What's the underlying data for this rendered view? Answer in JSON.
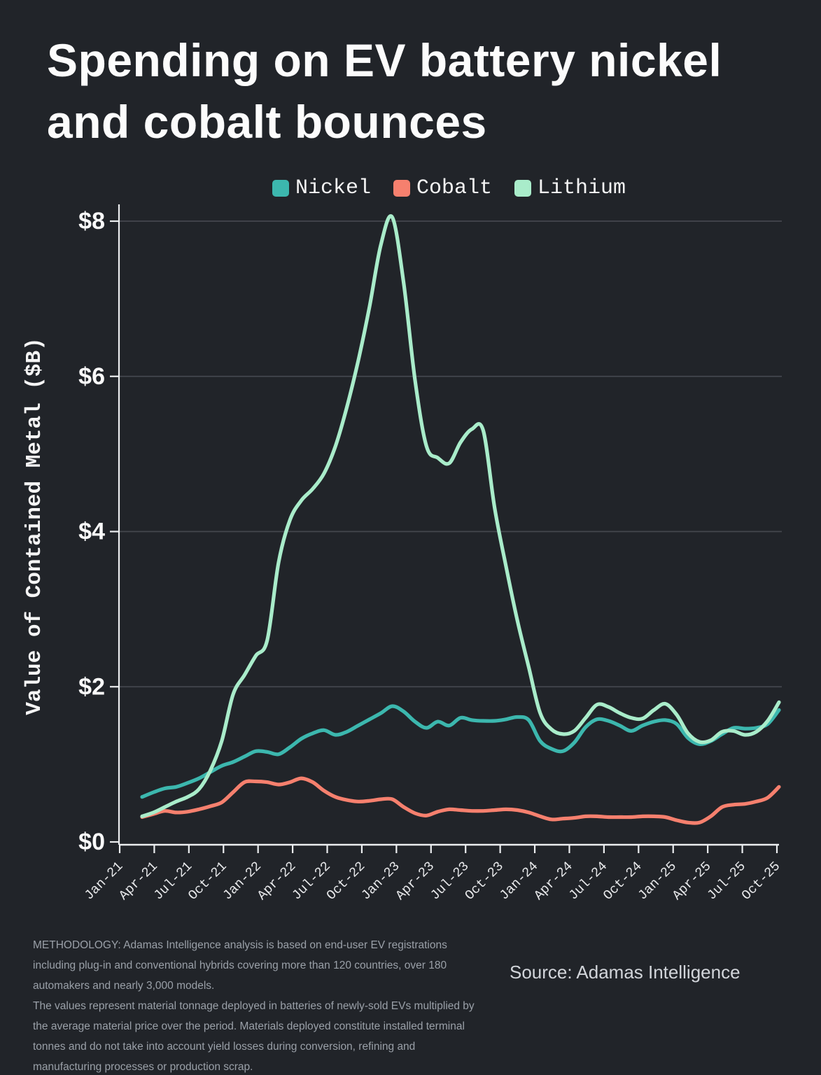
{
  "title": {
    "line1": "Spending on EV battery nickel",
    "line2": "and cobalt bounces"
  },
  "legend": [
    {
      "label": "Nickel",
      "color": "#3cb7ae"
    },
    {
      "label": "Cobalt",
      "color": "#f6806e"
    },
    {
      "label": "Lithium",
      "color": "#a9ecca"
    }
  ],
  "chart_data": {
    "type": "line",
    "title": "Spending on EV battery nickel and cobalt bounces",
    "ylabel": "Value of Contained Metal ($B)",
    "xlabel": "",
    "ylim": [
      0,
      8.4
    ],
    "y_tick_values": [
      0,
      2,
      4,
      6,
      8
    ],
    "y_tick_labels": [
      "$0",
      "$2",
      "$4",
      "$6",
      "$8"
    ],
    "x_tick_labels": [
      "Jan-21",
      "Apr-21",
      "Jul-21",
      "Oct-21",
      "Jan-22",
      "Apr-22",
      "Jul-22",
      "Oct-22",
      "Jan-23",
      "Apr-23",
      "Jul-23",
      "Oct-23",
      "Jan-24",
      "Apr-24",
      "Jul-24",
      "Oct-24",
      "Jan-25",
      "Apr-25",
      "Jul-25",
      "Oct-25"
    ],
    "frequency": "monthly",
    "x_start_month": "Feb-21",
    "x_end_month": "Oct-25",
    "grid": true,
    "legend_position": "top",
    "series": [
      {
        "name": "Cobalt",
        "color": "#f6806e",
        "values": [
          0.32,
          0.36,
          0.4,
          0.38,
          0.39,
          0.42,
          0.46,
          0.51,
          0.64,
          0.77,
          0.78,
          0.77,
          0.74,
          0.77,
          0.82,
          0.77,
          0.66,
          0.58,
          0.54,
          0.52,
          0.53,
          0.55,
          0.55,
          0.45,
          0.37,
          0.34,
          0.39,
          0.42,
          0.41,
          0.4,
          0.4,
          0.41,
          0.42,
          0.41,
          0.38,
          0.33,
          0.29,
          0.3,
          0.31,
          0.33,
          0.33,
          0.32,
          0.32,
          0.32,
          0.33,
          0.33,
          0.32,
          0.28,
          0.25,
          0.25,
          0.33,
          0.45,
          0.48,
          0.49,
          0.52,
          0.57,
          0.71
        ]
      },
      {
        "name": "Nickel",
        "color": "#3cb7ae",
        "values": [
          0.58,
          0.64,
          0.69,
          0.71,
          0.76,
          0.82,
          0.9,
          0.98,
          1.03,
          1.1,
          1.17,
          1.16,
          1.13,
          1.22,
          1.33,
          1.4,
          1.44,
          1.38,
          1.42,
          1.5,
          1.58,
          1.66,
          1.75,
          1.68,
          1.55,
          1.47,
          1.55,
          1.5,
          1.6,
          1.57,
          1.56,
          1.56,
          1.58,
          1.61,
          1.57,
          1.3,
          1.2,
          1.17,
          1.28,
          1.48,
          1.58,
          1.56,
          1.5,
          1.43,
          1.5,
          1.55,
          1.57,
          1.52,
          1.34,
          1.26,
          1.3,
          1.39,
          1.47,
          1.46,
          1.47,
          1.52,
          1.7
        ]
      },
      {
        "name": "Lithium",
        "color": "#a9ecca",
        "values": [
          0.33,
          0.38,
          0.45,
          0.52,
          0.58,
          0.68,
          0.92,
          1.3,
          1.9,
          2.15,
          2.4,
          2.6,
          3.6,
          4.15,
          4.4,
          4.55,
          4.75,
          5.1,
          5.6,
          6.2,
          6.9,
          7.7,
          8.05,
          7.2,
          5.95,
          5.1,
          4.95,
          4.88,
          5.15,
          5.32,
          5.3,
          4.3,
          3.55,
          2.85,
          2.25,
          1.66,
          1.45,
          1.39,
          1.43,
          1.6,
          1.77,
          1.74,
          1.66,
          1.6,
          1.59,
          1.7,
          1.78,
          1.64,
          1.4,
          1.29,
          1.31,
          1.42,
          1.43,
          1.38,
          1.42,
          1.56,
          1.8
        ]
      }
    ]
  },
  "footer": {
    "methodology_p1": "METHODOLOGY: Adamas Intelligence analysis is based on end-user EV registrations including plug-in and conventional hybrids covering more than 120 countries, over 180 automakers and nearly 3,000 models.",
    "methodology_p2": "The values represent material tonnage deployed in batteries of newly-sold EVs multiplied by the average material price over the period.  Materials deployed constitute installed terminal tonnes and do not take into account yield losses during conversion, refining and manufacturing processes or production scrap.",
    "source": "Source: Adamas Intelligence"
  },
  "colors": {
    "background": "#212429",
    "grid": "#44474e",
    "axis": "#eceef0",
    "tick_label": "#e8e9eb",
    "y_tick_label": "#fafafa",
    "title": "#fcfcfc",
    "footnote": "#9aa0a8",
    "source_text": "#d2d5da"
  }
}
